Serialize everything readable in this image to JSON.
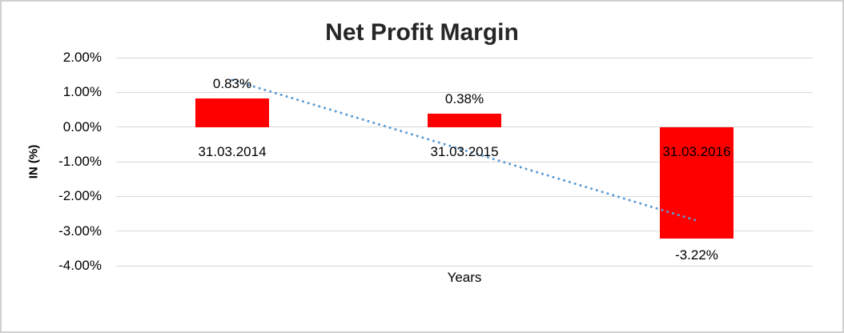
{
  "frame": {
    "background": "#ffffff",
    "border_color": "#d0d0d0"
  },
  "chart_data": {
    "type": "bar",
    "title": "Net Profit Margin",
    "xlabel": "Years",
    "ylabel": "IN (%)",
    "categories": [
      "31.03.2014",
      "31.03.2015",
      "31.03.2016"
    ],
    "series": [
      {
        "name": "Net Profit Margin",
        "color": "#ff0000",
        "values": [
          0.83,
          0.38,
          -3.22
        ],
        "data_labels": [
          "0.83%",
          "0.38%",
          "-3.22%"
        ]
      }
    ],
    "yaxis": {
      "lim": [
        -4,
        2
      ],
      "ticks": [
        2,
        1,
        0,
        -1,
        -2,
        -3,
        -4
      ],
      "tick_labels": [
        "2.00%",
        "1.00%",
        "0.00%",
        "-1.00%",
        "-2.00%",
        "-3.00%",
        "-4.00%"
      ]
    },
    "grid": {
      "horizontal": true,
      "color": "#d9d9d9"
    },
    "legend": "none",
    "trendline": {
      "type": "linear",
      "style": "dotted",
      "color": "#5b9bd5",
      "start_value_pct": 1.355,
      "end_value_pct": -2.695
    },
    "text_colors": {
      "title": "#262626",
      "labels": "#000000"
    }
  }
}
